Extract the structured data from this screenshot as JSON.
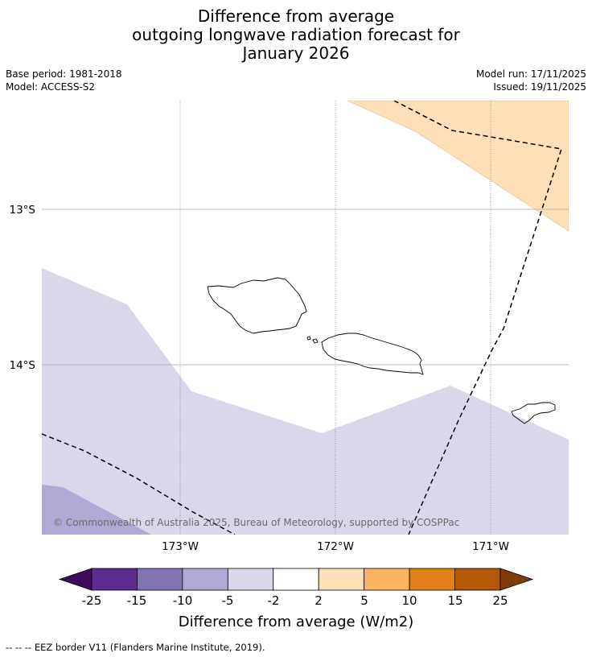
{
  "header": {
    "title_lines": [
      "Difference from average",
      "outgoing longwave radiation forecast for",
      "January 2026"
    ],
    "base_period": "Base period: 1981-2018",
    "model": "Model: ACCESS-S2",
    "model_run": "Model run: 17/11/2025",
    "issued": "Issued: 19/11/2025"
  },
  "map": {
    "lat_labels": [
      "13°S",
      "14°S"
    ],
    "lon_labels": [
      "173°W",
      "172°W",
      "171°W"
    ],
    "copyright": "© Commonwealth of Australia 2025, Bureau of Meteorology, supported by COSPPac",
    "colors": {
      "light_orange": "#fde0b7",
      "light_purple": "#d8d8ea",
      "mid_purple": "#b1a9d3",
      "coast": "#000000",
      "eez": "#000000"
    }
  },
  "colorbar": {
    "ticks": [
      "-25",
      "-15",
      "-10",
      "-5",
      "-2",
      "2",
      "5",
      "10",
      "15",
      "25"
    ],
    "colors": [
      "#3d0b5c",
      "#5d2b8f",
      "#8273b3",
      "#b1a9d3",
      "#d8d8ea",
      "#ffffff",
      "#fde0b7",
      "#fbb561",
      "#e0811a",
      "#b35806",
      "#7f3b08"
    ],
    "title": "Difference from average (W/m2)"
  },
  "footer": {
    "legend": "--  --  -- EEZ border V11 (Flanders Marine Institute, 2019)."
  }
}
